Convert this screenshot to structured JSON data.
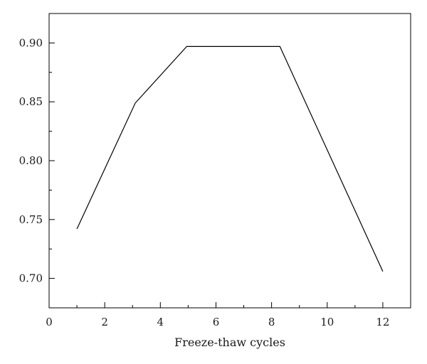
{
  "chart_data": {
    "type": "line",
    "title": "",
    "xlabel": "Freeze-thaw cycles",
    "ylabel": "",
    "xlim": [
      0,
      13
    ],
    "ylim": [
      0.675,
      0.925
    ],
    "x_ticks": [
      0,
      2,
      4,
      6,
      8,
      10,
      12
    ],
    "x_tick_labels": [
      "0",
      "2",
      "4",
      "6",
      "8",
      "10",
      "12"
    ],
    "x_minor_step": 1,
    "y_ticks": [
      0.7,
      0.75,
      0.8,
      0.85,
      0.9
    ],
    "y_tick_labels": [
      "0.70",
      "0.75",
      "0.80",
      "0.85",
      "0.90"
    ],
    "y_minor_step": 0.025,
    "grid": false,
    "legend": "none",
    "series": [
      {
        "x": [
          1,
          3.1,
          4.95,
          8.3,
          12
        ],
        "y": [
          0.742,
          0.849,
          0.897,
          0.897,
          0.706
        ]
      }
    ]
  }
}
